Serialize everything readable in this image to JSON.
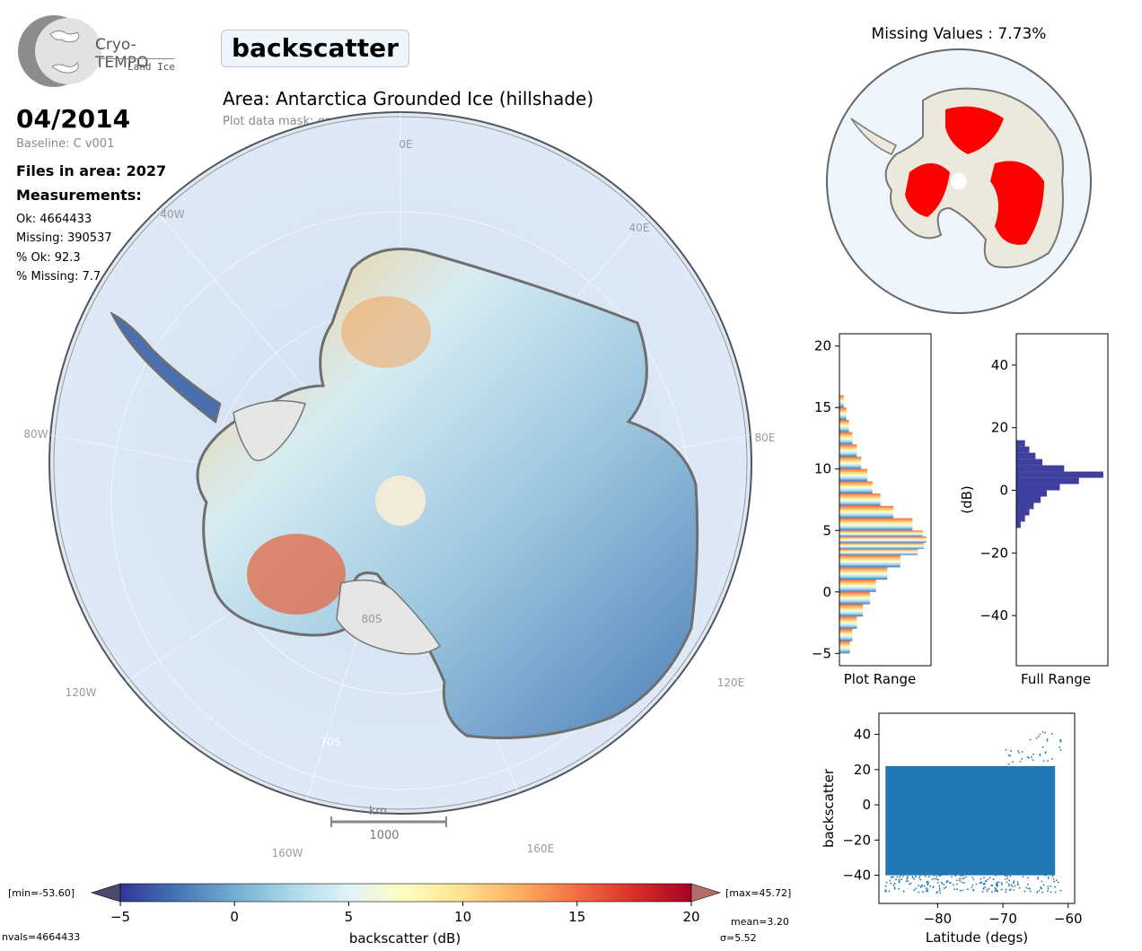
{
  "header": {
    "logo_name": "Cryo-TEMPO",
    "logo_sub": "Land Ice",
    "variable_name": "backscatter",
    "area_title": "Area: Antarctica Grounded Ice (hillshade)",
    "mask_text": "Plot data mask: grounded ice"
  },
  "info": {
    "date": "04/2014",
    "baseline": "Baseline: C v001",
    "files": "Files in area: 2027",
    "measurements_label": "Measurements:",
    "ok": "Ok: 4664433",
    "missing": "Missing: 390537",
    "pct_ok": "% Ok: 92.3",
    "pct_missing": "% Missing: 7.7"
  },
  "map": {
    "graticule_labels": [
      "0E",
      "40E",
      "80E",
      "120E",
      "160E",
      "160W",
      "120W",
      "80W",
      "40W",
      "80S",
      "70S"
    ],
    "scalebar_unit": "km",
    "scalebar_value": "1000"
  },
  "missing_map": {
    "title": "Missing Values : 7.73%"
  },
  "colorbar": {
    "label": "backscatter (dB)",
    "ticks": [
      "−5",
      "0",
      "5",
      "10",
      "15",
      "20"
    ],
    "min_text": "[min=-53.60]",
    "max_text": "[max=45.72]",
    "nvals_text": "nvals=4664433",
    "mean_text": "mean=3.20",
    "sigma_text": "σ=5.52",
    "colors": [
      "#313695",
      "#4575b4",
      "#74add1",
      "#abd9e9",
      "#e0f3f8",
      "#ffffbf",
      "#fee090",
      "#fdae61",
      "#f46d43",
      "#d73027",
      "#a50026"
    ]
  },
  "chart_data": [
    {
      "type": "bar",
      "orientation": "horizontal",
      "xlabel": "Plot Range",
      "ylim": [
        -6,
        21
      ],
      "y_ticks": [
        "−5",
        "0",
        "5",
        "10",
        "15",
        "20"
      ],
      "bins": [
        -5,
        -4,
        -3,
        -2,
        -1,
        0,
        1,
        2,
        3,
        3.5,
        4,
        4.5,
        5,
        6,
        7,
        8,
        9,
        10,
        11,
        12,
        13,
        14,
        15,
        16
      ],
      "values": [
        0.12,
        0.15,
        0.2,
        0.27,
        0.35,
        0.42,
        0.55,
        0.7,
        0.9,
        0.97,
        1.0,
        0.96,
        0.84,
        0.62,
        0.47,
        0.38,
        0.32,
        0.25,
        0.2,
        0.15,
        0.11,
        0.08,
        0.05,
        0.02
      ]
    },
    {
      "type": "bar",
      "orientation": "horizontal",
      "xlabel": "Full Range",
      "ylabel": "(dB)",
      "ylim": [
        -56,
        50
      ],
      "y_ticks": [
        "−40",
        "−20",
        "0",
        "20",
        "40"
      ],
      "bins": [
        -12,
        -10,
        -8,
        -6,
        -4,
        -2,
        0,
        2,
        4,
        6,
        8,
        10,
        12,
        14,
        16
      ],
      "values": [
        0.05,
        0.1,
        0.15,
        0.2,
        0.28,
        0.35,
        0.5,
        0.72,
        1.0,
        0.55,
        0.3,
        0.22,
        0.15,
        0.1,
        0.04
      ],
      "color": "#3f3fa0"
    },
    {
      "type": "scatter",
      "xlabel": "Latitude (degs)",
      "ylabel": "backscatter",
      "xlim": [
        -89,
        -59
      ],
      "ylim": [
        -56,
        52
      ],
      "x_ticks": [
        "−80",
        "−70",
        "−60"
      ],
      "y_ticks": [
        "−40",
        "−20",
        "0",
        "20",
        "40"
      ],
      "color": "#1f77b4"
    }
  ]
}
